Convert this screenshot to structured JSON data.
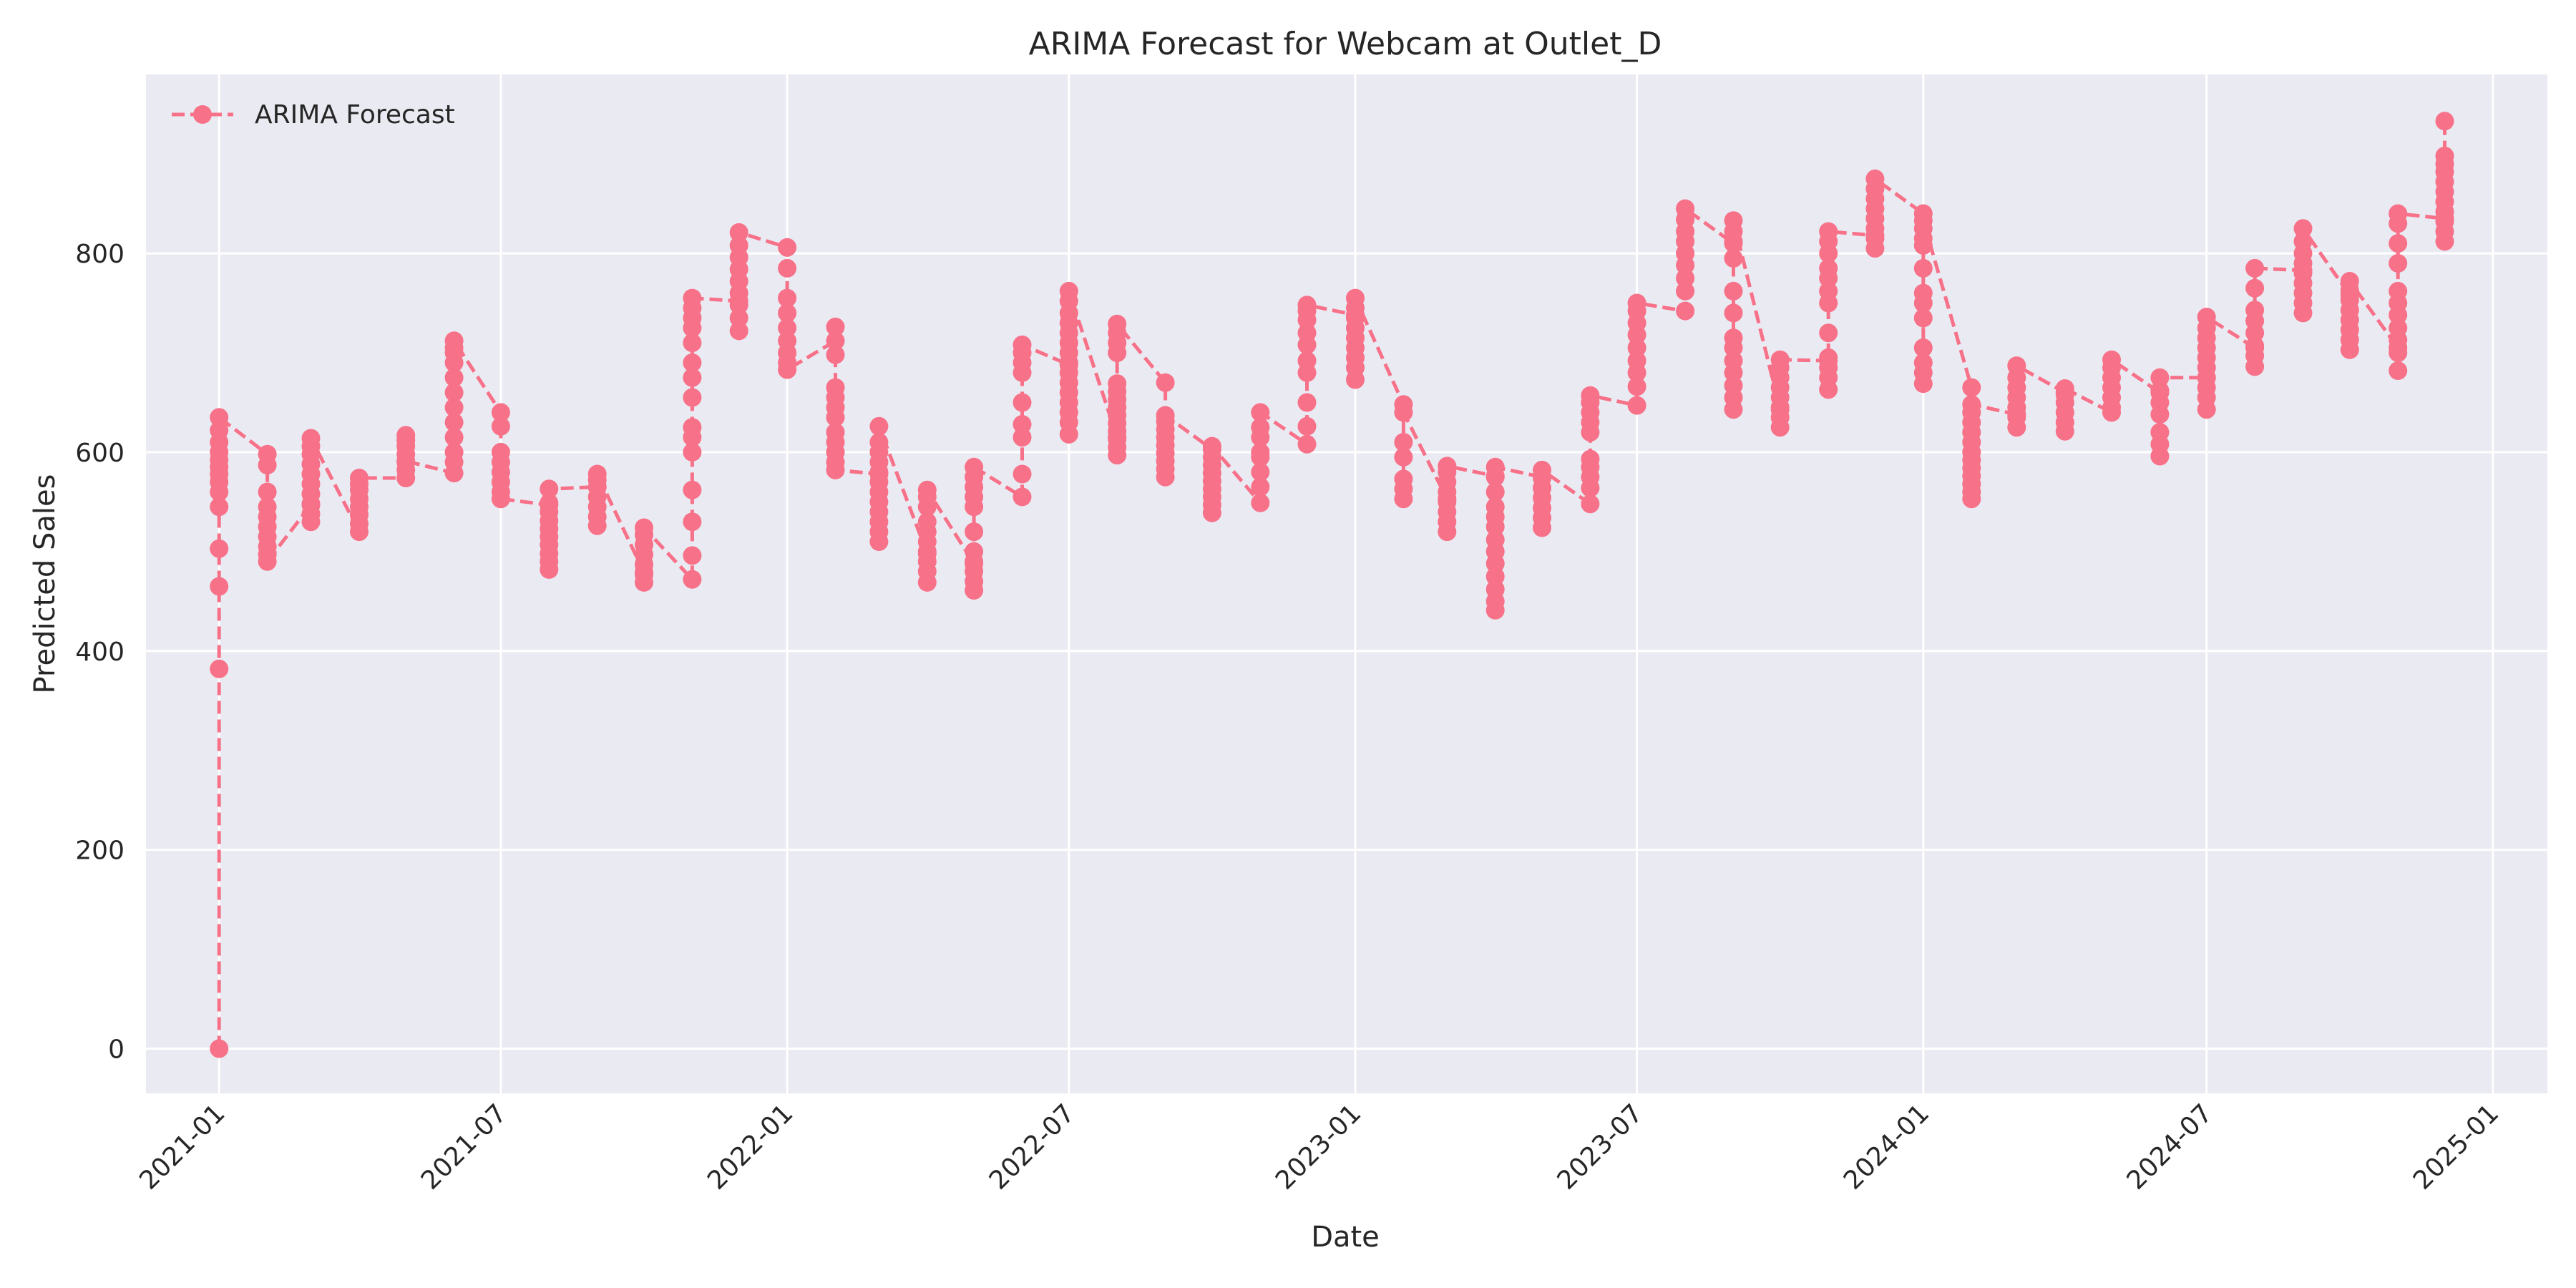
{
  "chart_data": {
    "type": "line",
    "title": "ARIMA Forecast for Webcam at Outlet_D",
    "xlabel": "Date",
    "ylabel": "Predicted Sales",
    "xlim": [
      "2020-11-15",
      "2025-02-05"
    ],
    "ylim": [
      -45,
      980
    ],
    "yticks": [
      0,
      200,
      400,
      600,
      800
    ],
    "xticks": [
      "2021-01",
      "2021-07",
      "2022-01",
      "2022-07",
      "2023-01",
      "2023-07",
      "2024-01",
      "2024-07",
      "2025-01"
    ],
    "grid": true,
    "legend_position": "top-left",
    "series": [
      {
        "name": "ARIMA Forecast",
        "color": "#f77189",
        "line_style": "dashed",
        "marker": "circle",
        "clusters": [
          {
            "date": "2021-01-01",
            "values": [
              0,
              382,
              465,
              503,
              545,
              560,
              570,
              578,
              585,
              592,
              600,
              610,
              622,
              635
            ]
          },
          {
            "date": "2021-02-01",
            "values": [
              598,
              587,
              560,
              545,
              535,
              525,
              515,
              505,
              497,
              490
            ]
          },
          {
            "date": "2021-03-01",
            "values": [
              547,
              530,
              538,
              548,
              558,
              568,
              578,
              588,
              598,
              606,
              614
            ]
          },
          {
            "date": "2021-04-01",
            "values": [
              520,
              528,
              537,
              545,
              553,
              562,
              568,
              574
            ]
          },
          {
            "date": "2021-05-01",
            "values": [
              574,
              582,
              590,
              598,
              606,
              612,
              617,
              591
            ]
          },
          {
            "date": "2021-06-01",
            "values": [
              579,
              590,
              600,
              615,
              630,
              645,
              660,
              675,
              690,
              700,
              705,
              712
            ]
          },
          {
            "date": "2021-07-01",
            "values": [
              640,
              626,
              600,
              590,
              580,
              570,
              560,
              553
            ]
          },
          {
            "date": "2021-08-01",
            "values": [
              547,
              482,
              490,
              498,
              507,
              515,
              523,
              531,
              540,
              549,
              563
            ]
          },
          {
            "date": "2021-09-01",
            "values": [
              565,
              526,
              535,
              545,
              555,
              565,
              572,
              578
            ]
          },
          {
            "date": "2021-10-01",
            "values": [
              479,
              469,
              477,
              487,
              497,
              507,
              517,
              524
            ]
          },
          {
            "date": "2021-11-01",
            "values": [
              472,
              496,
              530,
              562,
              600,
              615,
              625,
              655,
              675,
              690,
              710,
              725,
              735,
              745,
              755
            ]
          },
          {
            "date": "2021-12-01",
            "values": [
              752,
              722,
              735,
              748,
              760,
              772,
              784,
              796,
              808,
              821
            ]
          },
          {
            "date": "2022-01-01",
            "values": [
              806,
              785,
              755,
              740,
              725,
              712,
              700,
              690,
              683
            ]
          },
          {
            "date": "2022-02-01",
            "values": [
              712,
              726,
              698,
              665,
              655,
              645,
              635,
              620,
              610,
              600,
              590,
              582
            ]
          },
          {
            "date": "2022-03-01",
            "values": [
              578,
              510,
              520,
              530,
              540,
              550,
              560,
              570,
              580,
              590,
              600,
              610,
              626
            ]
          },
          {
            "date": "2022-04-01",
            "values": [
              498,
              469,
              480,
              490,
              500,
              510,
              520,
              530,
              545,
              555,
              562
            ]
          },
          {
            "date": "2022-05-01",
            "values": [
              488,
              461,
              470,
              480,
              490,
              500,
              520,
              545,
              555,
              565,
              575,
              585
            ]
          },
          {
            "date": "2022-06-01",
            "values": [
              555,
              578,
              615,
              628,
              650,
              680,
              690,
              700,
              708
            ]
          },
          {
            "date": "2022-07-01",
            "values": [
              688,
              618,
              630,
              640,
              650,
              660,
              670,
              680,
              690,
              700,
              710,
              720,
              730,
              740,
              752,
              762
            ]
          },
          {
            "date": "2022-08-01",
            "values": [
              615,
              597,
              605,
              613,
              621,
              629,
              637,
              645,
              653,
              661,
              669,
              700,
              710,
              720,
              729
            ]
          },
          {
            "date": "2022-09-01",
            "values": [
              670,
              575,
              583,
              591,
              599,
              607,
              615,
              623,
              631,
              637
            ]
          },
          {
            "date": "2022-10-01",
            "values": [
              603,
              539,
              547,
              555,
              563,
              571,
              579,
              587,
              595,
              606
            ]
          },
          {
            "date": "2022-11-01",
            "values": [
              549,
              565,
              580,
              595,
              600,
              615,
              625,
              640
            ]
          },
          {
            "date": "2022-12-01",
            "values": [
              608,
              626,
              650,
              680,
              692,
              708,
              720,
              733,
              742,
              748
            ]
          },
          {
            "date": "2023-01-01",
            "values": [
              738,
              673,
              685,
              695,
              705,
              715,
              725,
              735,
              745,
              755
            ]
          },
          {
            "date": "2023-02-01",
            "values": [
              648,
              553,
              563,
              573,
              595,
              610,
              640
            ]
          },
          {
            "date": "2023-03-01",
            "values": [
              553,
              520,
              530,
              540,
              550,
              560,
              570,
              580,
              586
            ]
          },
          {
            "date": "2023-04-01",
            "values": [
              576,
              441,
              450,
              462,
              475,
              488,
              500,
              512,
              525,
              535,
              545,
              560,
              575,
              585
            ]
          },
          {
            "date": "2023-05-01",
            "values": [
              575,
              524,
              534,
              544,
              554,
              564,
              574,
              582
            ]
          },
          {
            "date": "2023-06-01",
            "values": [
              548,
              564,
              575,
              585,
              593,
              620,
              630,
              640,
              650,
              657
            ]
          },
          {
            "date": "2023-07-01",
            "values": [
              647,
              666,
              680,
              692,
              705,
              718,
              730,
              742,
              750
            ]
          },
          {
            "date": "2023-08-01",
            "values": [
              742,
              762,
              775,
              788,
              800,
              812,
              822,
              834,
              845
            ]
          },
          {
            "date": "2023-09-01",
            "values": [
              810,
              643,
              655,
              667,
              680,
              692,
              705,
              715,
              740,
              762,
              795,
              812,
              822,
              833
            ]
          },
          {
            "date": "2023-10-01",
            "values": [
              643,
              625,
              635,
              645,
              655,
              665,
              675,
              685,
              693
            ]
          },
          {
            "date": "2023-11-01",
            "values": [
              692,
              663,
              675,
              685,
              695,
              720,
              750,
              762,
              775,
              785,
              800,
              812,
              822
            ]
          },
          {
            "date": "2023-12-01",
            "values": [
              818,
              805,
              815,
              825,
              835,
              845,
              855,
              865,
              875
            ]
          },
          {
            "date": "2024-01-01",
            "values": [
              840,
              669,
              680,
              690,
              705,
              735,
              750,
              760,
              785,
              808,
              815,
              825,
              833
            ]
          },
          {
            "date": "2024-02-01",
            "values": [
              665,
              553,
              560,
              568,
              576,
              584,
              592,
              600,
              610,
              620,
              630,
              640,
              648
            ]
          },
          {
            "date": "2024-03-01",
            "values": [
              638,
              625,
              635,
              645,
              655,
              665,
              675,
              687
            ]
          },
          {
            "date": "2024-04-01",
            "values": [
              660,
              621,
              630,
              640,
              650,
              658,
              664
            ]
          },
          {
            "date": "2024-05-01",
            "values": [
              640,
              645,
              655,
              665,
              675,
              685,
              693
            ]
          },
          {
            "date": "2024-06-01",
            "values": [
              660,
              596,
              608,
              620,
              638,
              650,
              662,
              675
            ]
          },
          {
            "date": "2024-07-01",
            "values": [
              675,
              643,
              655,
              665,
              675,
              685,
              695,
              705,
              715,
              725,
              736
            ]
          },
          {
            "date": "2024-08-01",
            "values": [
              705,
              686,
              697,
              707,
              720,
              732,
              743,
              765,
              785
            ]
          },
          {
            "date": "2024-09-01",
            "values": [
              783,
              740,
              750,
              760,
              770,
              780,
              790,
              800,
              812,
              825
            ]
          },
          {
            "date": "2024-10-01",
            "values": [
              758,
              703,
              713,
              723,
              733,
              743,
              753,
              763,
              772
            ]
          },
          {
            "date": "2024-11-01",
            "values": [
              705,
              682,
              700,
              713,
              725,
              738,
              750,
              762,
              790,
              810,
              830,
              840
            ]
          },
          {
            "date": "2024-12-01",
            "values": [
              835,
              812,
              822,
              832,
              842,
              852,
              862,
              872,
              882,
              890,
              898,
              933
            ]
          }
        ]
      }
    ]
  }
}
